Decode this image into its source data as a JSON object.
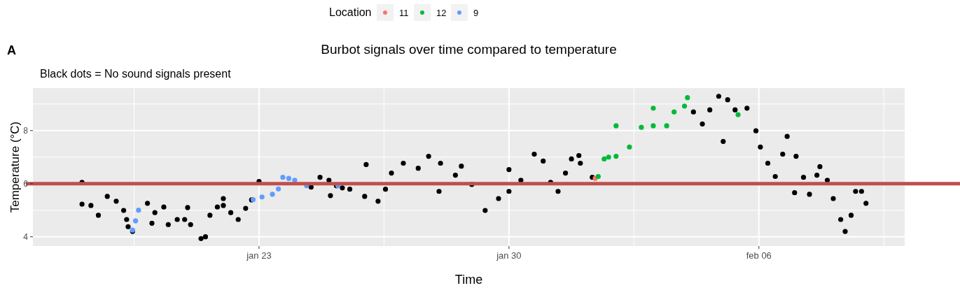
{
  "chart_data": {
    "type": "scatter",
    "title": "Burbot signals over time compared to temperature",
    "subtitle": "Black dots = No sound signals present",
    "xlabel": "Time",
    "ylabel": "Temperature (°C)",
    "legend_title": "Location",
    "annotations": [
      "A"
    ],
    "legend": "top",
    "grid": true,
    "marker": "circle",
    "xlim": [
      "--01-16T16:00",
      "--02-10T02:00"
    ],
    "xticks": [
      {
        "value": "--01-23",
        "label": "jan 23"
      },
      {
        "value": "--01-30",
        "label": "jan 30"
      },
      {
        "value": "--02-06",
        "label": "feb 06"
      }
    ],
    "ylim": [
      3.65,
      9.6
    ],
    "yticks": [
      4,
      6,
      8
    ],
    "ref_lines": [
      {
        "axis": "y",
        "value": 6,
        "color": "#c0504d"
      }
    ],
    "series": [
      {
        "name": "11",
        "color": "#f8766d",
        "x": [
          "--02-01T10:00"
        ],
        "values": [
          6.2
        ]
      },
      {
        "name": "12",
        "color": "#00ba38",
        "x": [
          "--02-01T12:00",
          "--02-01T16:00",
          "--02-01T19:00",
          "--02-02T00:00",
          "--02-02T09:00",
          "--02-02T17:00",
          "--02-03T01:00",
          "--02-03T10:00",
          "--02-03T15:00",
          "--02-03T22:00",
          "--02-02T00:00",
          "--02-03T01:00",
          "--02-04T00:00",
          "--02-05T10:00"
        ],
        "values": [
          6.27,
          6.93,
          7.0,
          7.03,
          7.38,
          8.12,
          8.18,
          8.18,
          8.7,
          8.92,
          8.18,
          8.84,
          9.24,
          8.6
        ]
      },
      {
        "name": "9",
        "color": "#619cff",
        "x": [
          "--01-19T11:00",
          "--01-19T13:00",
          "--01-19T15:00",
          "--01-22T20:00",
          "--01-23T02:00",
          "--01-23T09:00",
          "--01-23T13:00",
          "--01-23T16:00",
          "--01-23T20:00",
          "--01-24T00:00",
          "--01-24T08:00",
          "--01-25T05:00"
        ],
        "values": [
          4.25,
          4.6,
          5.0,
          5.4,
          5.5,
          5.6,
          5.8,
          6.24,
          6.2,
          6.13,
          5.92,
          5.92
        ]
      },
      {
        "color": "#000000",
        "x": [
          "--01-18T01:00",
          "--01-18T07:00",
          "--01-18T12:00",
          "--01-18T18:00",
          "--01-19T00:00",
          "--01-19T05:00",
          "--01-19T08:00",
          "--01-19T11:00",
          "--01-19T21:00",
          "--01-20T02:00",
          "--01-20T08:00",
          "--01-20T11:00",
          "--01-20T17:00",
          "--01-20T22:00",
          "--01-21T02:00",
          "--01-21T09:00",
          "--01-21T12:00",
          "--01-21T15:00",
          "--01-21T20:00",
          "--01-22T00:00",
          "--01-22T05:00",
          "--01-22T10:00",
          "--01-22T15:00",
          "--01-22T19:00",
          "--01-24T11:00",
          "--01-24T17:00",
          "--01-24T23:00",
          "--01-25T04:00",
          "--01-25T08:00",
          "--01-25T13:00",
          "--01-25T23:00",
          "--01-26T08:00",
          "--01-26T13:00",
          "--01-26T17:00",
          "--01-27T01:00",
          "--01-27T11:00",
          "--01-27T18:00",
          "--01-28T02:00",
          "--01-28T12:00",
          "--01-28T16:00",
          "--01-28T23:00",
          "--01-29T08:00",
          "--01-29T17:00",
          "--01-30T00:00",
          "--01-30T08:00",
          "--01-30T17:00",
          "--01-30T23:00",
          "--01-31T04:00",
          "--01-31T09:00",
          "--01-31T14:00",
          "--01-31T18:00",
          "--02-01T00:00",
          "--02-01T08:00",
          "--02-04T04:00",
          "--02-04T10:00",
          "--02-04T15:00",
          "--02-04T21:00",
          "--02-05T03:00",
          "--02-05T08:00",
          "--02-05T16:00",
          "--02-05T22:00",
          "--02-06T01:00",
          "--02-06T06:00",
          "--02-06T11:00",
          "--02-06T16:00",
          "--02-06T19:00",
          "--02-07T01:00",
          "--02-07T06:00",
          "--02-07T10:00",
          "--02-07T15:00",
          "--02-07T17:00",
          "--02-07T22:00",
          "--02-08T02:00",
          "--02-08T07:00",
          "--02-08T10:00",
          "--02-08T14:00",
          "--02-08T17:00",
          "--02-08T21:00",
          "--02-09T00:00",
          "--01-18T01:00",
          "--01-19T07:00",
          "--01-20T00:00",
          "--01-21T00:00",
          "--01-22T00:00",
          "--01-23T00:00",
          "--01-25T00:00",
          "--01-26T00:00",
          "--01-28T01:00",
          "--01-30T00:00",
          "--01-31T23:00",
          "--02-05T00:00",
          "--02-07T00:00"
        ],
        "values": [
          6.05,
          5.18,
          4.81,
          5.52,
          5.34,
          4.99,
          4.38,
          4.2,
          5.26,
          4.91,
          5.12,
          4.46,
          4.65,
          4.65,
          4.46,
          3.93,
          4.0,
          4.81,
          5.12,
          5.18,
          4.91,
          4.65,
          5.07,
          5.39,
          5.87,
          6.24,
          6.13,
          5.92,
          5.84,
          5.79,
          5.52,
          5.34,
          5.79,
          6.4,
          6.77,
          6.58,
          7.03,
          6.77,
          6.32,
          6.66,
          5.97,
          4.99,
          5.44,
          5.71,
          6.13,
          7.11,
          6.85,
          6.05,
          5.71,
          6.4,
          6.93,
          6.77,
          6.24,
          8.7,
          8.25,
          8.78,
          9.29,
          9.16,
          8.78,
          8.84,
          7.99,
          7.38,
          6.77,
          6.27,
          7.11,
          7.78,
          7.03,
          6.24,
          5.6,
          6.32,
          6.64,
          6.13,
          5.44,
          4.65,
          4.2,
          4.81,
          5.71,
          5.71,
          5.26,
          5.23,
          4.65,
          4.51,
          5.1,
          5.44,
          6.08,
          5.55,
          6.72,
          5.71,
          6.53,
          7.06,
          7.59,
          5.66
        ]
      }
    ]
  }
}
